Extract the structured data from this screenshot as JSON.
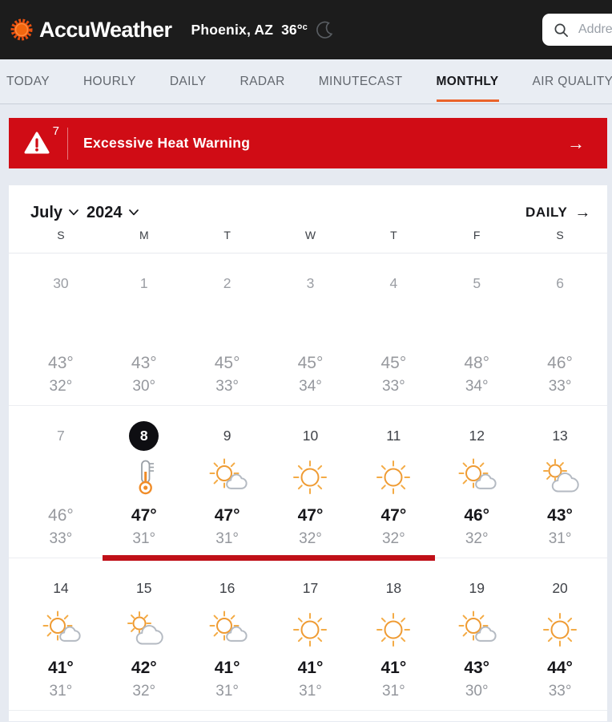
{
  "header": {
    "brand": "AccuWeather",
    "location": "Phoenix, AZ",
    "temp": "36°",
    "temp_unit": "c",
    "search_placeholder": "Addre"
  },
  "nav": {
    "tabs": [
      {
        "label": "TODAY",
        "active": false
      },
      {
        "label": "HOURLY",
        "active": false
      },
      {
        "label": "DAILY",
        "active": false
      },
      {
        "label": "RADAR",
        "active": false
      },
      {
        "label": "MINUTECAST",
        "active": false
      },
      {
        "label": "MONTHLY",
        "active": true
      },
      {
        "label": "AIR QUALITY",
        "active": false
      }
    ]
  },
  "alert": {
    "count": "7",
    "label": "Excessive Heat Warning",
    "arrow": "→"
  },
  "calendar": {
    "month": "July",
    "year": "2024",
    "daily_link_label": "DAILY",
    "daily_link_arrow": "→",
    "day_headers": [
      "S",
      "M",
      "T",
      "W",
      "T",
      "F",
      "S"
    ],
    "weeks": [
      {
        "days": [
          {
            "date": "30",
            "high": "43°",
            "low": "32°",
            "past": true
          },
          {
            "date": "1",
            "high": "43°",
            "low": "30°",
            "past": true
          },
          {
            "date": "2",
            "high": "45°",
            "low": "33°",
            "past": true
          },
          {
            "date": "3",
            "high": "45°",
            "low": "34°",
            "past": true
          },
          {
            "date": "4",
            "high": "45°",
            "low": "33°",
            "past": true
          },
          {
            "date": "5",
            "high": "48°",
            "low": "34°",
            "past": true
          },
          {
            "date": "6",
            "high": "46°",
            "low": "33°",
            "past": true
          }
        ]
      },
      {
        "days": [
          {
            "date": "7",
            "high": "46°",
            "low": "33°",
            "past": true
          },
          {
            "date": "8",
            "high": "47°",
            "low": "31°",
            "selected": true,
            "icon": "thermometer",
            "warn": true
          },
          {
            "date": "9",
            "high": "47°",
            "low": "31°",
            "icon": "partly-sunny",
            "warn": true
          },
          {
            "date": "10",
            "high": "47°",
            "low": "32°",
            "icon": "sunny",
            "warn": true
          },
          {
            "date": "11",
            "high": "47°",
            "low": "32°",
            "icon": "sunny",
            "warn": true
          },
          {
            "date": "12",
            "high": "46°",
            "low": "32°",
            "icon": "partly-sunny"
          },
          {
            "date": "13",
            "high": "43°",
            "low": "31°",
            "icon": "mostly-cloudy"
          }
        ]
      },
      {
        "days": [
          {
            "date": "14",
            "high": "41°",
            "low": "31°",
            "icon": "partly-sunny"
          },
          {
            "date": "15",
            "high": "42°",
            "low": "32°",
            "icon": "mostly-cloudy"
          },
          {
            "date": "16",
            "high": "41°",
            "low": "31°",
            "icon": "partly-sunny"
          },
          {
            "date": "17",
            "high": "41°",
            "low": "31°",
            "icon": "sunny"
          },
          {
            "date": "18",
            "high": "41°",
            "low": "31°",
            "icon": "sunny"
          },
          {
            "date": "19",
            "high": "43°",
            "low": "30°",
            "icon": "partly-sunny"
          },
          {
            "date": "20",
            "high": "44°",
            "low": "33°",
            "icon": "sunny"
          }
        ]
      }
    ]
  },
  "colors": {
    "header_bg": "#1c1c1c",
    "brand_orange": "#e8500f",
    "nav_active_underline": "#ea632a",
    "alert_red": "#d00c15",
    "warn_bar_red": "#c01018",
    "sun_orange": "#ef9b33",
    "cloud_gray": "#b4bac2"
  }
}
